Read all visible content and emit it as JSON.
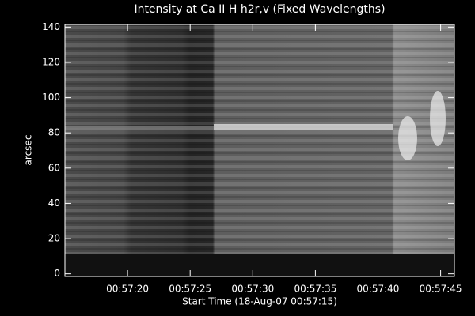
{
  "chart_data": {
    "type": "image",
    "title": "Intensity at Ca II H h2r,v (Fixed Wavelengths)",
    "xlabel": "Start Time (18-Aug-07 00:57:15)",
    "ylabel": "arcsec",
    "xlim": [
      0,
      31.1
    ],
    "ylim": [
      -1.5,
      141.5
    ],
    "xticks": [
      {
        "value": 5,
        "label": "00:57:20"
      },
      {
        "value": 10,
        "label": "00:57:25"
      },
      {
        "value": 15,
        "label": "00:57:30"
      },
      {
        "value": 20,
        "label": "00:57:35"
      },
      {
        "value": 25,
        "label": "00:57:40"
      },
      {
        "value": 30,
        "label": "00:57:45"
      }
    ],
    "yticks": [
      0,
      20,
      40,
      60,
      80,
      100,
      120,
      140
    ],
    "grid": false
  }
}
